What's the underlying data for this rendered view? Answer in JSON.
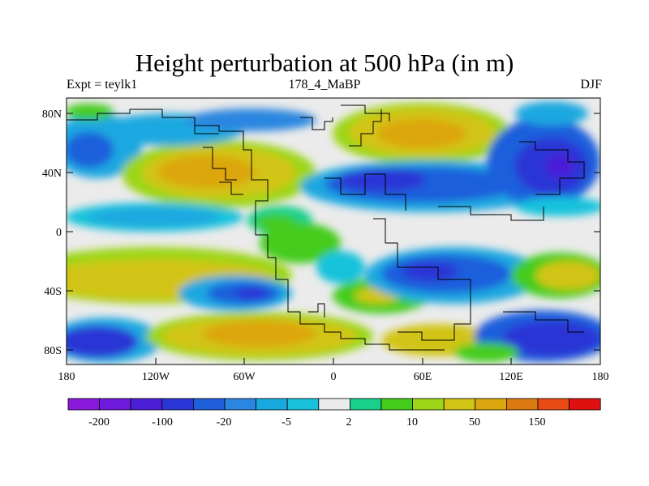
{
  "header": {
    "title": "Height perturbation at 500 hPa (in m)",
    "left_label": "Expt = teylk1",
    "center_label": "178_4_MaBP",
    "right_label": "DJF"
  },
  "axes": {
    "y_ticks": [
      "80N",
      "40N",
      "0",
      "40S",
      "80S"
    ],
    "x_ticks": [
      "180",
      "120W",
      "60W",
      "0",
      "60E",
      "120E",
      "180"
    ]
  },
  "colorbar": {
    "colors": [
      "#8a19dc",
      "#6f19dc",
      "#4b1fd8",
      "#2a36d6",
      "#1f5fdc",
      "#2a86e0",
      "#1aa8e0",
      "#18c2dc",
      "#ebebeb",
      "#18d08a",
      "#44cc1a",
      "#9cd616",
      "#d2c414",
      "#dca60e",
      "#dc7a10",
      "#e84a14",
      "#e01010"
    ],
    "labels": [
      "-200",
      "-100",
      "-20",
      "-5",
      "2",
      "10",
      "50",
      "150"
    ]
  }
}
